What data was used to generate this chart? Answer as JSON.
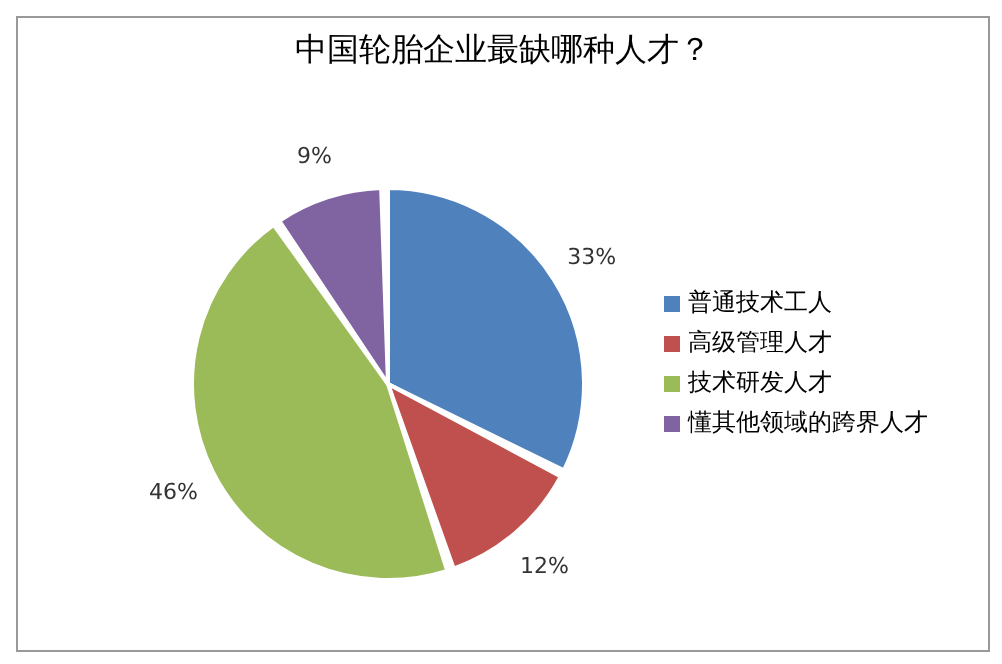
{
  "chart_data": {
    "type": "pie",
    "title": "中国轮胎企业最缺哪种人才？",
    "categories": [
      "普通技术工人",
      "高级管理人才",
      "技术研发人才",
      "懂其他领域的跨界人才"
    ],
    "values": [
      33,
      12,
      46,
      9
    ],
    "value_labels": [
      "33%",
      "12%",
      "46%",
      "9%"
    ],
    "colors": [
      "#4f81bd",
      "#c0504d",
      "#9bbb59",
      "#8064a2"
    ],
    "legend": "right"
  }
}
